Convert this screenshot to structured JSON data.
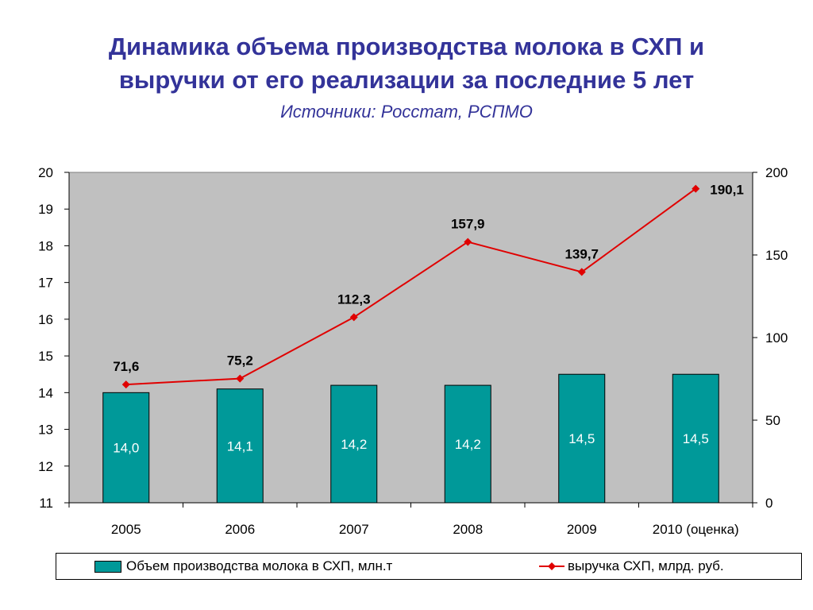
{
  "title": {
    "line1": "Динамика объема производства молока в СХП и",
    "line2": "выручки от его реализации за последние 5 лет"
  },
  "subtitle": "Источники: Росстат, РСПМО",
  "colors": {
    "bar": "#009999",
    "line": "#e00000",
    "plot_background": "#c0c0c0",
    "title": "#333399"
  },
  "chart_data": {
    "type": "bar+line",
    "categories": [
      "2005",
      "2006",
      "2007",
      "2008",
      "2009",
      "2010 (оценка)"
    ],
    "series": [
      {
        "name": "Объем производства молока в СХП, млн.т",
        "type": "bar",
        "axis": "left",
        "values": [
          14.0,
          14.1,
          14.2,
          14.2,
          14.5,
          14.5
        ],
        "labels": [
          "14,0",
          "14,1",
          "14,2",
          "14,2",
          "14,5",
          "14,5"
        ]
      },
      {
        "name": "выручка СХП, млрд. руб.",
        "type": "line",
        "axis": "right",
        "values": [
          71.6,
          75.2,
          112.3,
          157.9,
          139.7,
          190.1
        ],
        "labels": [
          "71,6",
          "75,2",
          "112,3",
          "157,9",
          "139,7",
          "190,1"
        ]
      }
    ],
    "y_left": {
      "min": 11,
      "max": 20,
      "ticks": [
        11,
        12,
        13,
        14,
        15,
        16,
        17,
        18,
        19,
        20
      ]
    },
    "y_right": {
      "min": 0,
      "max": 200,
      "ticks": [
        0,
        50,
        100,
        150,
        200
      ]
    },
    "grid": false,
    "legend": "bottom"
  }
}
